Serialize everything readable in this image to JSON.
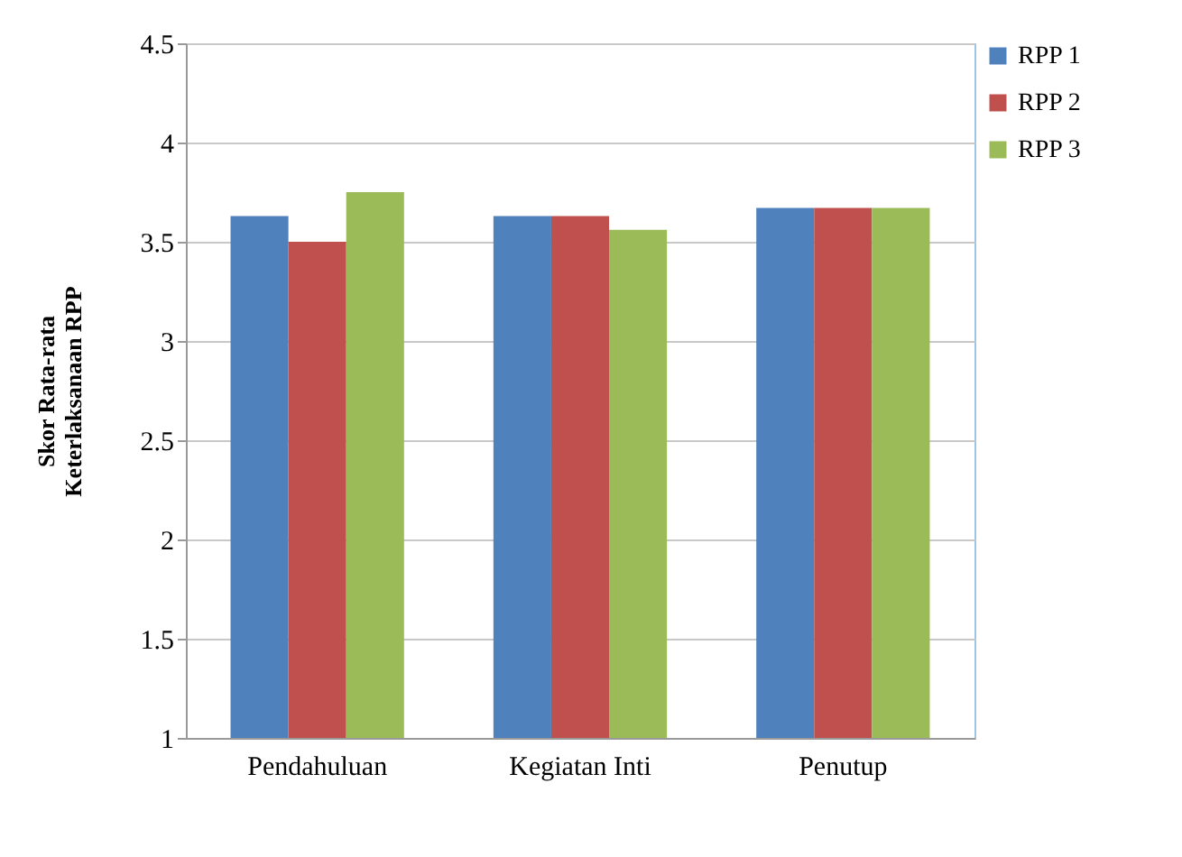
{
  "chart_data": {
    "type": "bar",
    "ylabel": "Skor Rata-rata\nKeterlaksanaan  RPP",
    "categories": [
      "Pendahuluan",
      "Kegiatan Inti",
      "Penutup"
    ],
    "series": [
      {
        "name": "RPP 1",
        "color": "#4f81bd",
        "values": [
          3.63,
          3.63,
          3.67
        ]
      },
      {
        "name": "RPP 2",
        "color": "#c0504d",
        "values": [
          3.5,
          3.63,
          3.67
        ]
      },
      {
        "name": "RPP 3",
        "color": "#9bbb59",
        "values": [
          3.75,
          3.56,
          3.67
        ]
      }
    ],
    "ylim": [
      1,
      4.5
    ],
    "yticks": [
      1,
      1.5,
      2,
      2.5,
      3,
      3.5,
      4,
      4.5
    ],
    "grid": "y",
    "legend": "right"
  }
}
